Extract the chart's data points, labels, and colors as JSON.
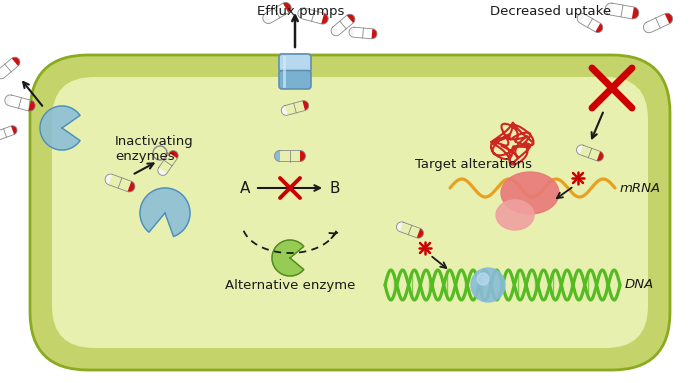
{
  "bg_color": "#ffffff",
  "cell_outer_color": "#c5d46a",
  "cell_inner_color": "#e8f0b0",
  "cell_border_color": "#9aaa28",
  "efflux_pump_color_top": "#a8d0e8",
  "efflux_pump_color_bot": "#7ab8d8",
  "efflux_label": "Efflux pumps",
  "decreased_uptake_label": "Decreased uptake",
  "inactivating_label": "Inactivating\nenzymes",
  "alternative_label": "Alternative enzyme",
  "target_label": "Target alterations",
  "mrna_label": "mRNA",
  "dna_label": "DNA",
  "a_label": "A",
  "b_label": "B",
  "enzyme_color": "#88bcd8",
  "alt_enzyme_color": "#8dc84a",
  "dna_color": "#55bb22",
  "mrna_color": "#e8a020",
  "ribosome_color1": "#e87878",
  "ribosome_color2": "#f0a0a0",
  "pill_red": "#cc1111",
  "pill_white": "#f5f5f5",
  "cross_color": "#cc0000",
  "arrow_color": "#1a1a1a"
}
